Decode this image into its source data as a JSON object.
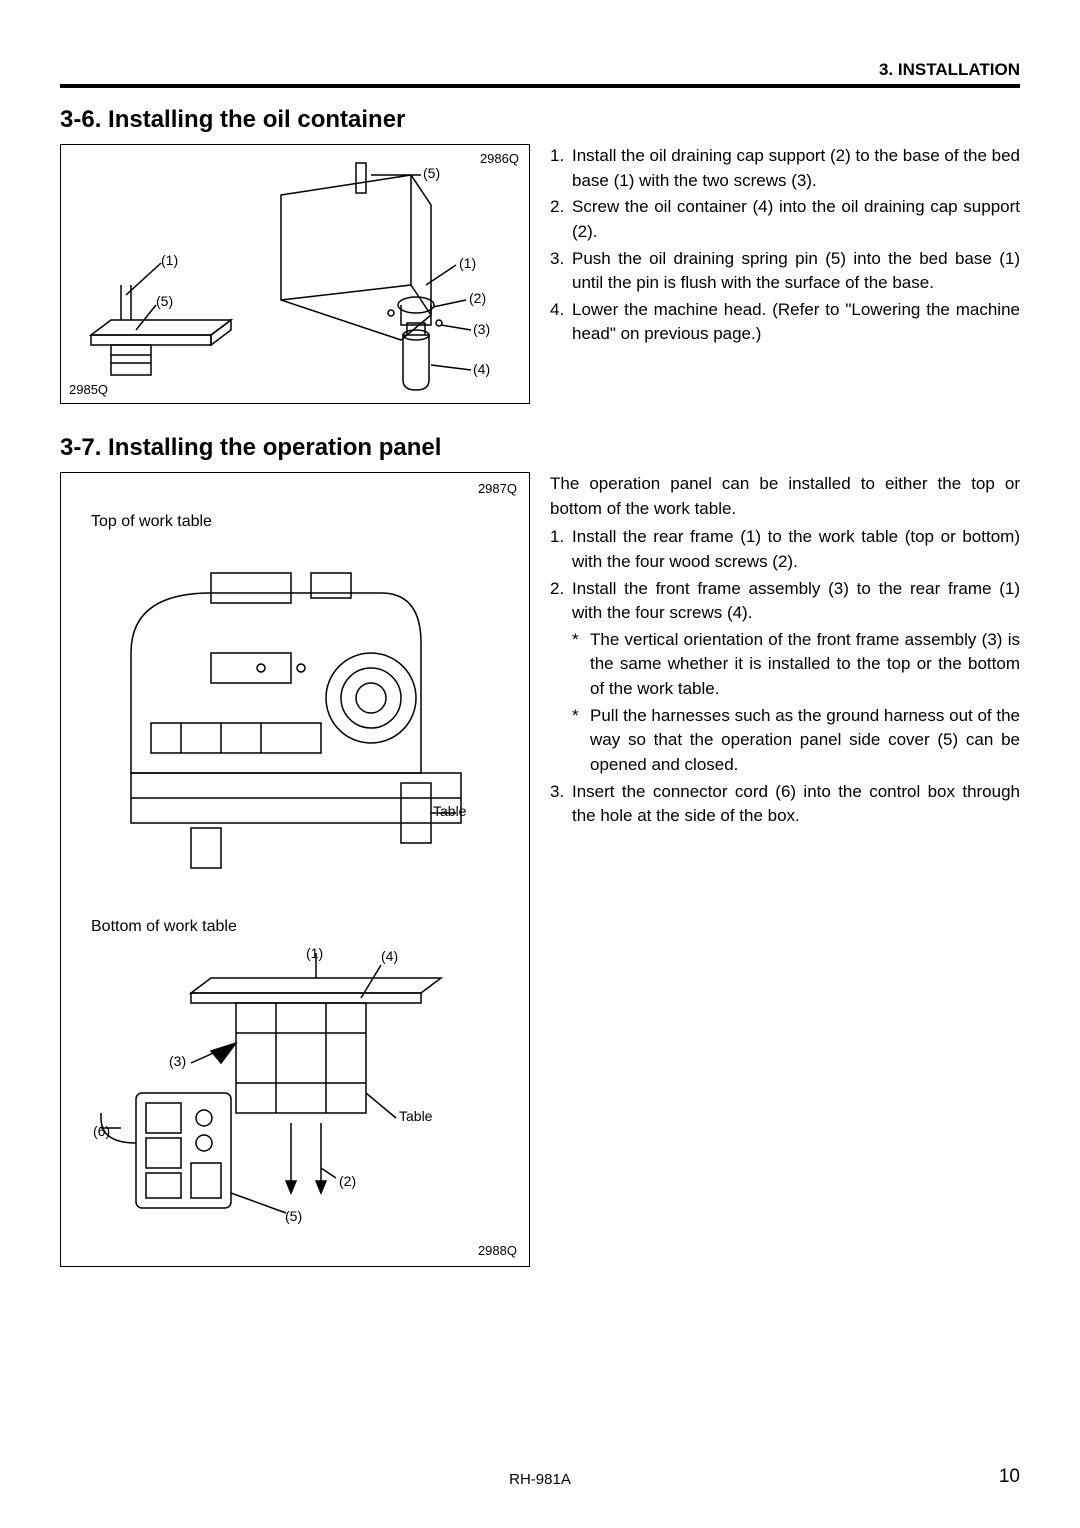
{
  "header": {
    "section": "3. INSTALLATION"
  },
  "sec1": {
    "title": "3-6.  Installing the oil container",
    "fig_left_code": "2985Q",
    "fig_right_code": "2986Q",
    "labels": {
      "l1a": "(1)",
      "l5a": "(5)",
      "l5b": "(5)",
      "l1b": "(1)",
      "l2": "(2)",
      "l3": "(3)",
      "l4": "(4)"
    },
    "steps": [
      {
        "n": "1.",
        "t": "Install the oil draining cap support (2) to the base of the bed base (1) with the two screws (3)."
      },
      {
        "n": "2.",
        "t": "Screw the oil container (4) into the oil draining cap support (2)."
      },
      {
        "n": "3.",
        "t": "Push the oil draining spring pin (5) into the bed base (1) until the pin is flush with the surface of the base."
      },
      {
        "n": "4.",
        "t": "Lower the machine head. (Refer to \"Lowering the machine head\" on previous page.)"
      }
    ],
    "box": {
      "stroke": "#000000",
      "fill": "#ffffff"
    }
  },
  "sec2": {
    "title": "3-7.  Installing the operation panel",
    "fig_top_code": "2987Q",
    "fig_bot_code": "2988Q",
    "top_label": "Top of work table",
    "bot_label": "Bottom of work table",
    "table1": "Table",
    "table2": "Table",
    "labels": {
      "l1": "(1)",
      "l2": "(2)",
      "l3": "(3)",
      "l4": "(4)",
      "l5": "(5)",
      "l6": "(6)"
    },
    "intro": "The operation panel can be installed to either the top or bottom of the work table.",
    "steps": [
      {
        "n": "1.",
        "t": "Install the rear frame (1) to the work table (top or bottom) with the four wood screws (2)."
      },
      {
        "n": "2.",
        "t": "Install the front frame assembly (3) to the rear frame (1) with the four screws (4).",
        "sub": [
          "The vertical orientation of the front frame assembly (3) is the same whether it is installed to the top or the bottom of the work table.",
          "Pull the harnesses such as the ground harness out of the way so that the operation panel side cover (5) can be opened and closed."
        ]
      },
      {
        "n": "3.",
        "t": "Insert the connector cord (6) into the control box through the hole at the side of the box."
      }
    ],
    "box": {
      "stroke": "#000000",
      "fill": "#ffffff"
    }
  },
  "footer": {
    "model": "RH-981A",
    "page": "10"
  }
}
